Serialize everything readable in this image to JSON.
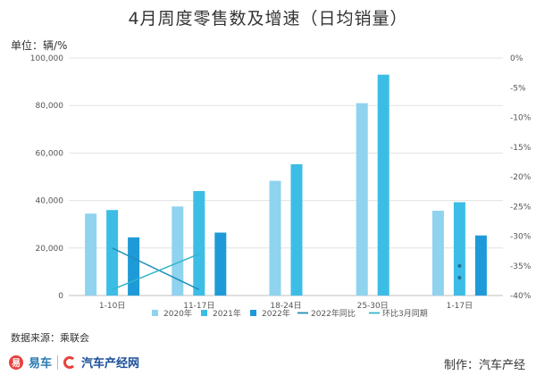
{
  "chart_data": {
    "type": "bar",
    "title": "4月周度零售数及增速（日均销量）",
    "unit_label": "单位：辆/%",
    "categories": [
      "1-10日",
      "11-17日",
      "18-24日",
      "25-30日",
      "1-17日"
    ],
    "series": [
      {
        "name": "2020年",
        "color": "#8fd3ee",
        "values": [
          34500,
          37500,
          48300,
          81000,
          35700
        ]
      },
      {
        "name": "2021年",
        "color": "#3cbde6",
        "values": [
          36000,
          44000,
          55300,
          93000,
          39300
        ]
      },
      {
        "name": "2022年",
        "color": "#1f9ad8",
        "values": [
          24500,
          26500,
          null,
          null,
          25300
        ]
      }
    ],
    "line_series": [
      {
        "name": "2022年同比",
        "color": "#1f8fb8",
        "values": [
          -32,
          -39,
          null,
          null,
          -35
        ]
      },
      {
        "name": "环比3月同期",
        "color": "#33b5c8",
        "values": [
          -39,
          -33,
          null,
          null,
          -37
        ]
      }
    ],
    "y_left": {
      "min": 0,
      "max": 100000,
      "step": 20000,
      "tick_labels": [
        "0",
        "20,000",
        "40,000",
        "60,000",
        "80,000",
        "100,000"
      ]
    },
    "y_right": {
      "min": -40,
      "max": 0,
      "step": 5,
      "tick_labels": [
        "-40%",
        "-35%",
        "-30%",
        "-25%",
        "-20%",
        "-15%",
        "-10%",
        "-5%",
        "0%"
      ]
    },
    "grid": true,
    "legend_position": "bottom"
  },
  "footer": {
    "source": "数据来源：乘联会",
    "brand_badge": "易",
    "brand_yiche": "易车",
    "brand_auto": "汽车产经网",
    "credit": "制作：汽车产经"
  }
}
